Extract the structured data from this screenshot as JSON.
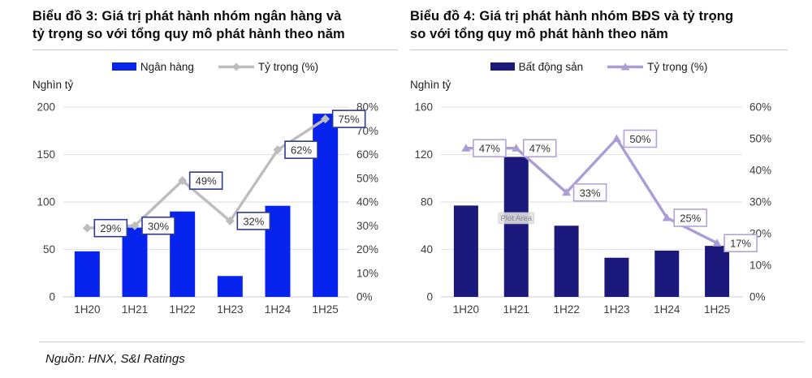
{
  "footer": {
    "source_label": "Nguồn: HNX, S&I Ratings"
  },
  "chart_data": [
    {
      "type": "bar",
      "title": "Biểu đồ 3: Giá trị phát hành nhóm ngân hàng và tỷ trọng so với tổng quy mô phát hành theo năm",
      "title_lines": [
        "Biểu đồ 3: Giá trị phát hành nhóm ngân hàng và",
        "tỷ trọng so với tổng quy mô phát hành theo năm"
      ],
      "unit_label": "Nghìn tỷ",
      "categories": [
        "1H20",
        "1H21",
        "1H22",
        "1H23",
        "1H24",
        "1H25"
      ],
      "series": [
        {
          "name": "Ngân hàng",
          "type": "bar",
          "axis": "left",
          "color": "#0724ef",
          "values": [
            48,
            73,
            90,
            22,
            96,
            193
          ]
        },
        {
          "name": "Tỷ trọng (%)",
          "type": "line",
          "axis": "right",
          "color": "#bdbdbd",
          "marker": "diamond",
          "values": [
            29,
            30,
            49,
            32,
            62,
            75
          ],
          "labels": [
            "29%",
            "30%",
            "49%",
            "32%",
            "62%",
            "75%"
          ],
          "label_border": "#2e3a8f"
        }
      ],
      "left_axis": {
        "min": 0,
        "max": 200,
        "step": 50,
        "ticks": [
          "0",
          "50",
          "100",
          "150",
          "200"
        ]
      },
      "right_axis": {
        "min": 0,
        "max": 80,
        "step": 10,
        "ticks": [
          "0%",
          "10%",
          "20%",
          "30%",
          "40%",
          "50%",
          "60%",
          "70%",
          "80%"
        ]
      },
      "grid": true,
      "legend_position": "top"
    },
    {
      "type": "bar",
      "title": "Biểu đồ 4: Giá trị phát hành nhóm BĐS và tỷ trọng so với tổng quy mô phát hành theo năm",
      "title_lines": [
        "Biểu đồ 4: Giá trị phát hành nhóm BĐS và tỷ trọng",
        "so với tổng quy mô phát hành theo năm"
      ],
      "unit_label": "Nghìn tỷ",
      "plot_area_tooltip": "Plot Area",
      "categories": [
        "1H20",
        "1H21",
        "1H22",
        "1H23",
        "1H24",
        "1H25"
      ],
      "series": [
        {
          "name": "Bất động sản",
          "type": "bar",
          "axis": "left",
          "color": "#1b1a7c",
          "values": [
            77,
            118,
            60,
            33,
            39,
            43
          ]
        },
        {
          "name": "Tỷ trọng (%)",
          "type": "line",
          "axis": "right",
          "color": "#ab9ed6",
          "marker": "triangle",
          "values": [
            47,
            47,
            33,
            50,
            25,
            17
          ],
          "labels": [
            "47%",
            "47%",
            "33%",
            "50%",
            "25%",
            "17%"
          ],
          "label_border": "#b3a3d9"
        }
      ],
      "left_axis": {
        "min": 0,
        "max": 160,
        "step": 40,
        "ticks": [
          "0",
          "40",
          "80",
          "120",
          "160"
        ]
      },
      "right_axis": {
        "min": 0,
        "max": 60,
        "step": 10,
        "ticks": [
          "0%",
          "10%",
          "20%",
          "30%",
          "40%",
          "50%",
          "60%"
        ]
      },
      "grid": true,
      "legend_position": "top"
    }
  ]
}
